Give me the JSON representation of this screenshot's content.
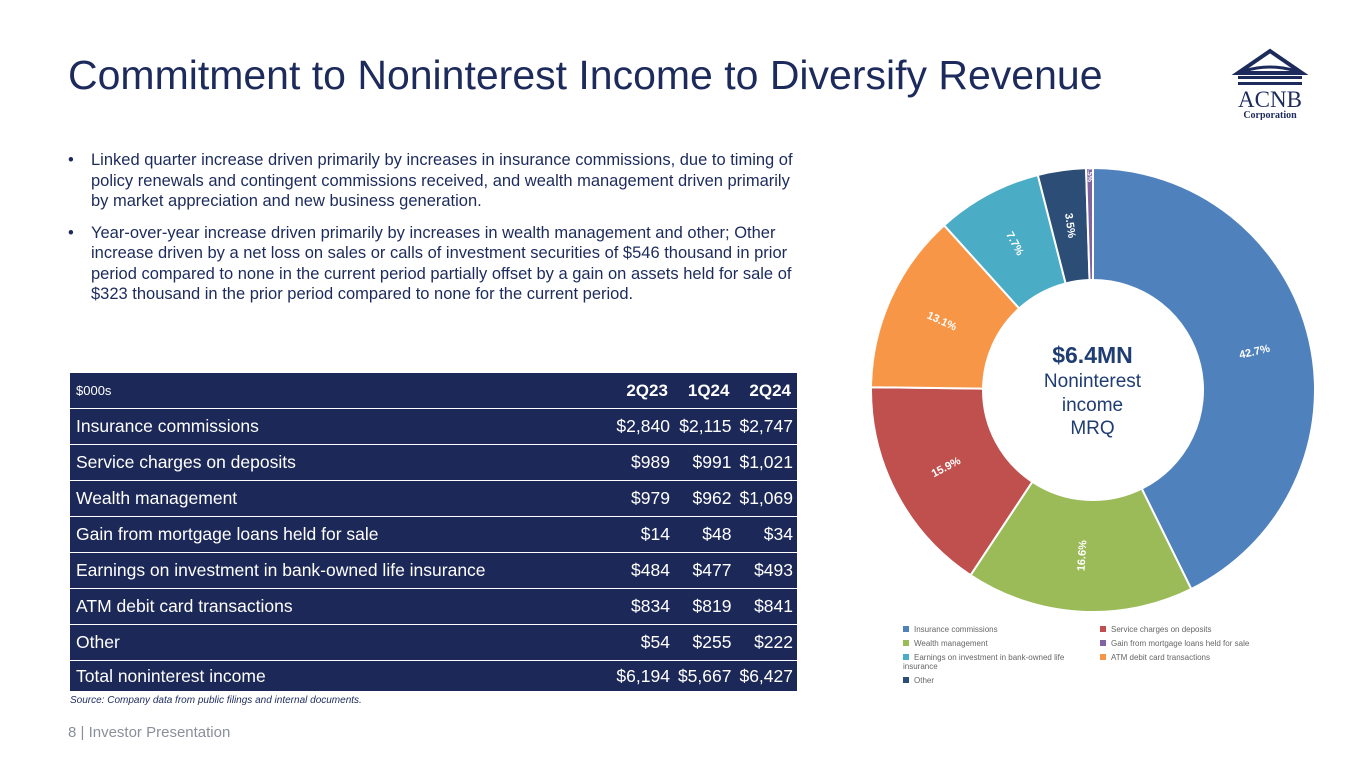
{
  "title": "Commitment to Noninterest Income to Diversify Revenue",
  "logo": {
    "text": "ACNB",
    "sub": "Corporation"
  },
  "bullets": [
    "Linked quarter increase driven primarily by increases in insurance commissions, due to timing of policy renewals and contingent commissions received, and wealth management driven primarily by market appreciation and new business generation.",
    "Year-over-year increase driven primarily by increases in wealth management and other; Other increase driven by a net loss on sales or calls of investment securities of $546 thousand in prior period compared to none in the current period partially offset by a gain on assets held for sale of $323 thousand in the prior period compared to none for the current period."
  ],
  "table": {
    "unit": "$000s",
    "columns": [
      "2Q23",
      "1Q24",
      "2Q24"
    ],
    "rows": [
      {
        "label": "Insurance commissions",
        "values": [
          "$2,840",
          "$2,115",
          "$2,747"
        ]
      },
      {
        "label": "Service charges on deposits",
        "values": [
          "$989",
          "$991",
          "$1,021"
        ]
      },
      {
        "label": "Wealth management",
        "values": [
          "$979",
          "$962",
          "$1,069"
        ]
      },
      {
        "label": "Gain from mortgage loans held for sale",
        "values": [
          "$14",
          "$48",
          "$34"
        ]
      },
      {
        "label": "Earnings on investment in bank-owned life insurance",
        "values": [
          "$484",
          "$477",
          "$493"
        ]
      },
      {
        "label": "ATM debit card transactions",
        "values": [
          "$834",
          "$819",
          "$841"
        ]
      },
      {
        "label": "Other",
        "values": [
          "$54",
          "$255",
          "$222"
        ]
      },
      {
        "label": "Total noninterest income",
        "values": [
          "$6,194",
          "$5,667",
          "$6,427"
        ]
      }
    ]
  },
  "source": "Source: Company data from public filings and internal documents.",
  "footer": "8  | Investor Presentation",
  "center": {
    "value": "$6.4MN",
    "l1": "Noninterest",
    "l2": "income",
    "l3": "MRQ"
  },
  "chart_data": {
    "type": "pie",
    "donut": true,
    "slices": [
      {
        "name": "Insurance commissions",
        "value": 42.7,
        "label": "42.7%",
        "color": "#4f81bd"
      },
      {
        "name": "Wealth management",
        "value": 16.6,
        "label": "16.6%",
        "color": "#9bbb59"
      },
      {
        "name": "Service charges on deposits",
        "value": 15.9,
        "label": "15.9%",
        "color": "#c0504d"
      },
      {
        "name": "ATM debit card transactions",
        "value": 13.1,
        "label": "13.1%",
        "color": "#f79646"
      },
      {
        "name": "Earnings on investment in bank-owned life insurance",
        "value": 7.7,
        "label": "7.7%",
        "color": "#4bacc6"
      },
      {
        "name": "Other",
        "value": 3.5,
        "label": "3.5%",
        "color": "#2c4d75"
      },
      {
        "name": "Gain from mortgage loans held for sale",
        "value": 0.5,
        "label": "0.5%",
        "color": "#8064a2"
      }
    ],
    "legend_order": [
      "Insurance commissions",
      "Service charges on deposits",
      "Wealth management",
      "Gain from mortgage loans held for sale",
      "Earnings on investment in bank-owned life insurance",
      "ATM debit card transactions",
      "Other"
    ],
    "legend_position": "bottom"
  }
}
